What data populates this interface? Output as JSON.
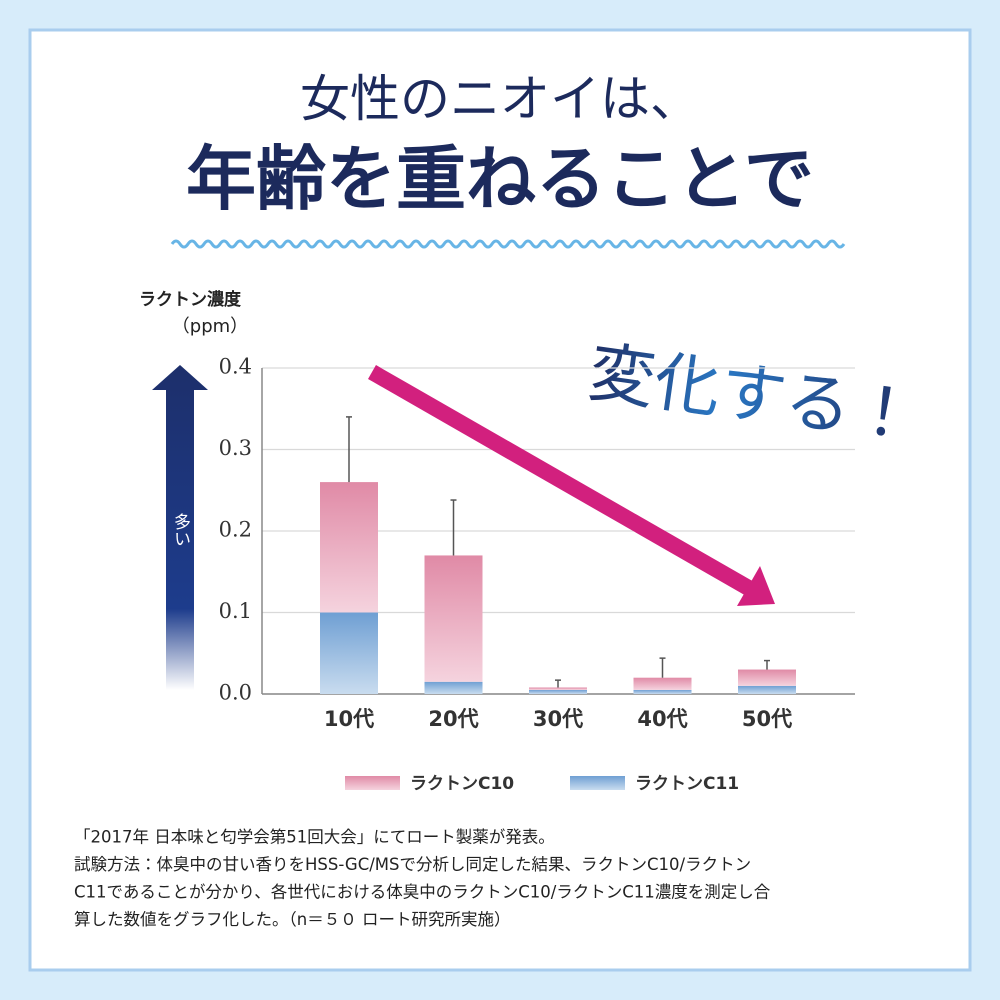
{
  "header": {
    "line1": "女性のニオイは、",
    "line2": "年齢を重ねることで",
    "callout": "変化する！"
  },
  "chart_data": {
    "type": "bar",
    "stacked": true,
    "y_label": "ラクトン濃度",
    "y_unit": "（ppm）",
    "arrow_label": "多い",
    "categories": [
      "10代",
      "20代",
      "30代",
      "40代",
      "50代"
    ],
    "series": [
      {
        "name": "ラクトンC11",
        "color": "#7fa9d6",
        "values": [
          0.1,
          0.015,
          0.005,
          0.005,
          0.01
        ]
      },
      {
        "name": "ラクトンC10",
        "color": "#e59ab2",
        "values": [
          0.16,
          0.155,
          0.003,
          0.015,
          0.02
        ]
      }
    ],
    "errors": [
      0.08,
      0.068,
      0.009,
      0.024,
      0.011
    ],
    "ylim": [
      0,
      0.4
    ],
    "yticks": [
      {
        "value": 0,
        "label": "0.0"
      },
      0.1,
      0.2,
      0.3,
      0.4
    ],
    "grid": true
  },
  "footnote": {
    "lines": [
      "「2017年 日本味と匂学会第51回大会」にてロート製薬が発表。",
      "試験方法：体臭中の甘い香りをHSS-GC/MSで分析し同定した結果、ラクトンC10/ラクトン",
      "C11であることが分かり、各世代における体臭中のラクトンC10/ラクトンC11濃度を測定し合",
      "算した数値をグラフ化した。（n＝５０ ロート研究所実施）"
    ]
  }
}
